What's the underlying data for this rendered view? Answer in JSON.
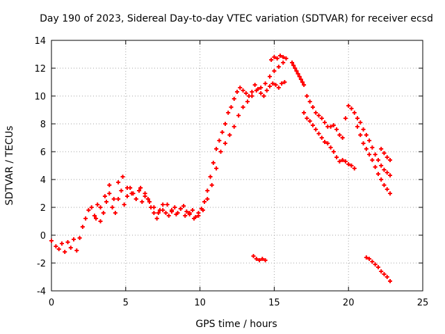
{
  "chart_data": {
    "type": "scatter",
    "title": "Day 190 of 2023, Sidereal Day-to-day VTEC variation (SDTVAR) for receiver ecsd",
    "xlabel": "GPS time / hours",
    "ylabel": "SDTVAR / TECUs",
    "xlim": [
      0,
      25
    ],
    "ylim": [
      -4,
      14
    ],
    "x_ticks": [
      0,
      5,
      10,
      15,
      20,
      25
    ],
    "y_ticks": [
      -4,
      -2,
      0,
      2,
      4,
      6,
      8,
      10,
      12,
      14
    ],
    "x_tick_labels": [
      "0",
      "5",
      "10",
      "15",
      "20",
      "25"
    ],
    "y_tick_labels": [
      "-4",
      "-2",
      "0",
      "2",
      "4",
      "6",
      "8",
      "10",
      "12",
      "14"
    ],
    "grid": true,
    "marker": "+",
    "color": "#ff0000",
    "series": [
      {
        "name": "main-trace",
        "x": [
          0.0,
          0.3,
          0.5,
          0.7,
          0.9,
          1.1,
          1.3,
          1.5,
          1.7,
          1.9,
          2.1,
          2.3,
          2.5,
          2.7,
          2.9,
          3.1,
          3.3,
          3.5,
          3.7,
          3.9,
          4.1,
          4.3,
          4.5,
          4.7,
          4.9,
          5.1,
          5.3,
          5.5,
          5.7,
          5.9,
          6.1,
          6.3,
          6.5,
          6.7,
          6.9,
          7.1,
          7.3,
          7.5,
          7.7,
          7.9,
          8.1,
          8.3,
          8.5,
          8.7,
          8.9,
          9.1,
          9.3,
          9.5,
          9.7,
          9.9,
          10.1,
          10.3,
          10.5,
          10.7,
          10.9,
          11.1,
          11.3,
          11.5,
          11.7,
          11.9,
          12.1,
          12.3,
          12.5,
          12.7,
          12.9,
          13.1,
          13.3,
          13.5,
          13.7,
          13.9,
          14.1,
          14.3,
          14.5,
          14.7,
          14.9,
          15.1,
          15.3,
          15.5,
          15.7
        ],
        "y": [
          -0.4,
          -0.8,
          -1.0,
          -0.6,
          -1.2,
          -0.5,
          -0.9,
          -0.3,
          -1.1,
          -0.2,
          0.6,
          1.2,
          1.8,
          2.0,
          1.4,
          2.2,
          1.0,
          1.6,
          2.4,
          3.0,
          2.0,
          1.6,
          2.6,
          3.2,
          2.2,
          2.8,
          3.4,
          3.0,
          2.6,
          3.2,
          2.4,
          3.0,
          2.6,
          2.0,
          1.6,
          1.2,
          1.8,
          2.2,
          1.6,
          1.4,
          1.8,
          2.0,
          1.6,
          1.9,
          2.1,
          1.7,
          1.5,
          1.8,
          1.3,
          1.6,
          1.9,
          2.4,
          3.2,
          4.2,
          5.2,
          6.2,
          6.8,
          7.4,
          8.0,
          8.8,
          9.2,
          9.8,
          10.3,
          10.6,
          10.4,
          10.2,
          10.0,
          10.3,
          10.8,
          10.5,
          10.2,
          10.0,
          10.4,
          10.7,
          10.9,
          10.8,
          10.6,
          10.9,
          11.0
        ]
      },
      {
        "name": "upper-branch",
        "x": [
          3.0,
          3.3,
          3.6,
          3.9,
          4.2,
          4.5,
          4.8,
          5.1,
          5.4,
          5.7,
          6.0,
          6.3,
          6.6,
          6.9,
          7.2,
          7.5,
          7.8,
          8.1,
          8.4,
          8.7,
          9.0,
          9.3,
          9.6,
          9.9,
          10.2,
          10.5,
          10.8,
          11.1,
          11.4,
          11.7,
          12.0,
          12.3,
          12.6,
          12.9,
          13.2,
          13.5,
          13.8,
          14.1,
          14.4,
          14.7,
          15.0,
          15.3,
          15.6
        ],
        "y": [
          1.2,
          2.0,
          2.8,
          3.6,
          2.6,
          3.8,
          4.2,
          3.4,
          3.0,
          2.6,
          3.4,
          2.8,
          2.4,
          2.0,
          1.6,
          1.8,
          2.2,
          1.7,
          1.5,
          1.9,
          1.4,
          1.6,
          1.2,
          1.4,
          1.8,
          2.6,
          3.6,
          4.8,
          6.0,
          6.6,
          7.2,
          7.8,
          8.6,
          9.2,
          9.6,
          10.0,
          10.4,
          10.6,
          10.9,
          11.4,
          11.8,
          12.1,
          12.4
        ]
      },
      {
        "name": "peak-cluster",
        "x": [
          14.8,
          15.0,
          15.2,
          15.4,
          15.6,
          15.8,
          16.2,
          16.3,
          16.4,
          16.5,
          16.6,
          16.7,
          16.8,
          16.9,
          17.0
        ],
        "y": [
          12.6,
          12.8,
          12.7,
          12.9,
          12.8,
          12.7,
          12.4,
          12.2,
          12.0,
          11.8,
          11.6,
          11.4,
          11.2,
          11.0,
          10.8
        ]
      },
      {
        "name": "descent-a",
        "x": [
          17.2,
          17.4,
          17.6,
          17.8,
          18.0,
          18.2,
          18.4,
          18.6,
          18.8,
          19.0,
          19.2,
          19.4,
          19.6,
          19.8,
          20.0,
          20.2,
          20.4,
          20.6,
          20.8,
          21.0,
          21.2,
          21.4,
          21.6,
          21.8,
          22.0,
          22.2,
          22.4,
          22.6,
          22.8
        ],
        "y": [
          10.0,
          9.6,
          9.2,
          8.8,
          8.6,
          8.4,
          8.1,
          7.8,
          7.8,
          7.9,
          7.6,
          7.2,
          7.0,
          8.4,
          9.3,
          9.1,
          8.8,
          8.4,
          8.1,
          7.6,
          7.2,
          6.8,
          6.3,
          5.8,
          5.4,
          5.0,
          4.7,
          4.5,
          4.3
        ]
      },
      {
        "name": "descent-b",
        "x": [
          17.0,
          17.2,
          17.4,
          17.6,
          17.8,
          18.0,
          18.2,
          18.4,
          18.6,
          18.8,
          19.0,
          19.2,
          19.4,
          19.6,
          19.8,
          20.0,
          20.2,
          20.4,
          20.6,
          20.8,
          21.0,
          21.2,
          21.4,
          21.6,
          21.8,
          22.0,
          22.2,
          22.4,
          22.6,
          22.8
        ],
        "y": [
          8.8,
          8.4,
          8.2,
          7.9,
          7.6,
          7.3,
          7.0,
          6.7,
          6.6,
          6.3,
          6.0,
          5.6,
          5.3,
          5.4,
          5.3,
          5.1,
          5.0,
          4.8,
          7.8,
          7.2,
          6.6,
          6.2,
          5.8,
          5.4,
          4.9,
          4.4,
          4.0,
          3.6,
          3.3,
          3.0
        ]
      },
      {
        "name": "late-cluster",
        "x": [
          22.2,
          22.4,
          22.6,
          22.8
        ],
        "y": [
          6.2,
          5.9,
          5.6,
          5.4
        ]
      },
      {
        "name": "low-cluster-a",
        "x": [
          13.6,
          13.8,
          14.0,
          14.2,
          14.4
        ],
        "y": [
          -1.5,
          -1.7,
          -1.8,
          -1.7,
          -1.8
        ]
      },
      {
        "name": "low-cluster-b",
        "x": [
          21.2,
          21.4,
          21.6,
          21.8,
          22.0,
          22.2,
          22.4,
          22.6,
          22.8
        ],
        "y": [
          -1.6,
          -1.7,
          -1.9,
          -2.1,
          -2.3,
          -2.6,
          -2.8,
          -3.0,
          -3.3
        ]
      }
    ]
  }
}
